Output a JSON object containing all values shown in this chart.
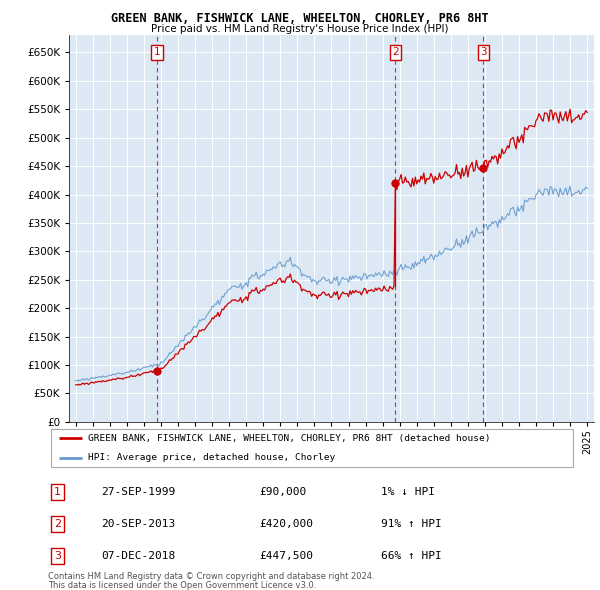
{
  "title": "GREEN BANK, FISHWICK LANE, WHEELTON, CHORLEY, PR6 8HT",
  "subtitle": "Price paid vs. HM Land Registry's House Price Index (HPI)",
  "legend_red": "GREEN BANK, FISHWICK LANE, WHEELTON, CHORLEY, PR6 8HT (detached house)",
  "legend_blue": "HPI: Average price, detached house, Chorley",
  "transactions": [
    {
      "num": 1,
      "date": "27-SEP-1999",
      "price": 90000,
      "pct": "1%",
      "dir": "↓"
    },
    {
      "num": 2,
      "date": "20-SEP-2013",
      "price": 420000,
      "pct": "91%",
      "dir": "↑"
    },
    {
      "num": 3,
      "date": "07-DEC-2018",
      "price": 447500,
      "pct": "66%",
      "dir": "↑"
    }
  ],
  "footer1": "Contains HM Land Registry data © Crown copyright and database right 2024.",
  "footer2": "This data is licensed under the Open Government Licence v3.0.",
  "red_color": "#cc0000",
  "blue_color": "#6699cc",
  "chart_bg": "#dce9f5",
  "background_color": "#ffffff",
  "grid_color": "#ffffff",
  "ylim_min": 0,
  "ylim_max": 680000,
  "yticks": [
    0,
    50000,
    100000,
    150000,
    200000,
    250000,
    300000,
    350000,
    400000,
    450000,
    500000,
    550000,
    600000,
    650000
  ]
}
